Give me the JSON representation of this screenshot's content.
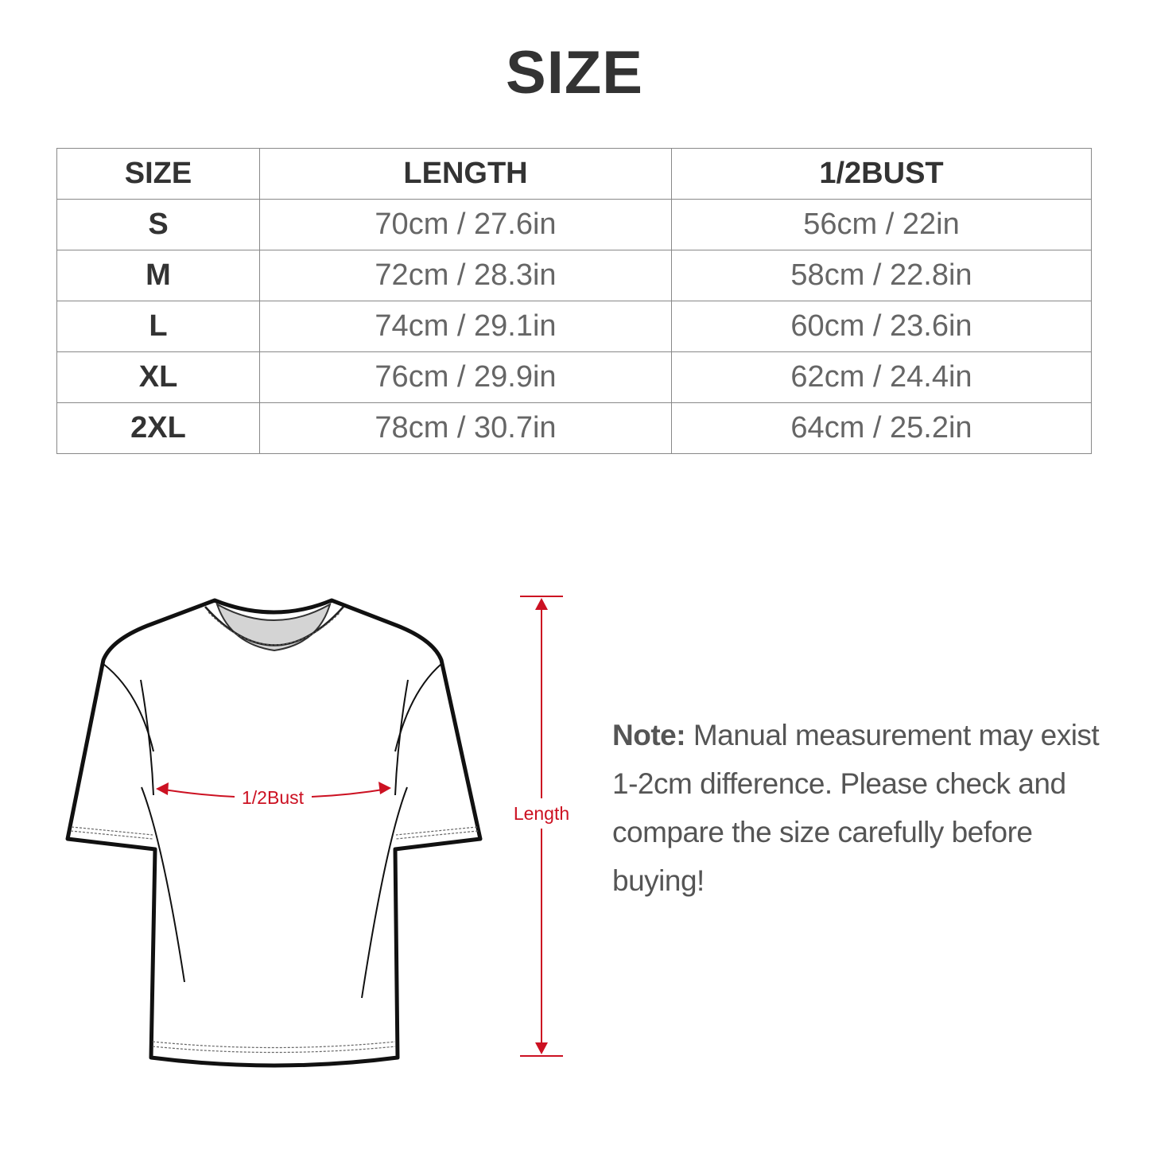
{
  "title": "SIZE",
  "table": {
    "headers": [
      "SIZE",
      "LENGTH",
      "1/2BUST"
    ],
    "rows": [
      [
        "S",
        "70cm / 27.6in",
        "56cm / 22in"
      ],
      [
        "M",
        "72cm / 28.3in",
        "58cm / 22.8in"
      ],
      [
        "L",
        "74cm / 29.1in",
        "60cm / 23.6in"
      ],
      [
        "XL",
        "76cm / 29.9in",
        "62cm / 24.4in"
      ],
      [
        "2XL",
        "78cm / 30.7in",
        "64cm / 25.2in"
      ]
    ]
  },
  "diagram": {
    "bust_label": "1/2Bust",
    "length_label": "Length",
    "measure_color": "#cc1122"
  },
  "note": {
    "label": "Note:",
    "text": " Manual measurement may exist 1-2cm difference. Please check and compare the size carefully before buying!"
  }
}
